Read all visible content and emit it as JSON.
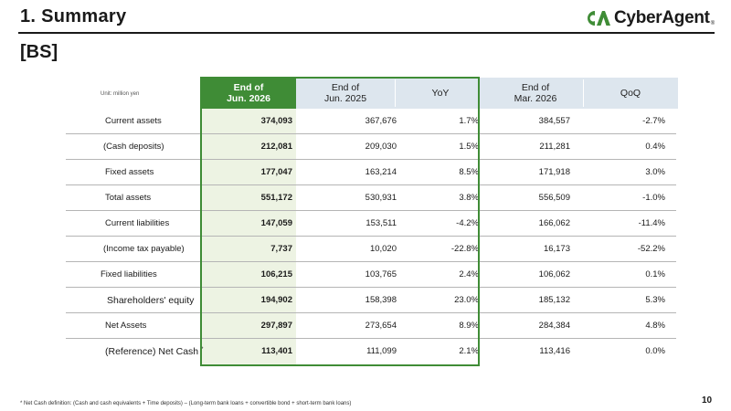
{
  "header": {
    "title": "1.  Summary",
    "section": "[BS]",
    "logo_text": "CyberAgent",
    "logo_reg": "®"
  },
  "table": {
    "unit": "Unit: million yen",
    "columns": [
      {
        "line1": "End of",
        "line2": "Jun. 2026"
      },
      {
        "line1": "End of",
        "line2": "Jun. 2025"
      },
      {
        "line1": "YoY",
        "line2": ""
      },
      {
        "line1": "End of",
        "line2": "Mar. 2026"
      },
      {
        "line1": "QoQ",
        "line2": ""
      }
    ],
    "rows": [
      {
        "label": "Current assets",
        "values": [
          "374,093",
          "367,676",
          "1.7%",
          "384,557",
          "-2.7%"
        ]
      },
      {
        "label": "(Cash deposits)",
        "values": [
          "212,081",
          "209,030",
          "1.5%",
          "211,281",
          "0.4%"
        ]
      },
      {
        "label": "Fixed assets",
        "values": [
          "177,047",
          "163,214",
          "8.5%",
          "171,918",
          "3.0%"
        ]
      },
      {
        "label": "Total assets",
        "values": [
          "551,172",
          "530,931",
          "3.8%",
          "556,509",
          "-1.0%"
        ]
      },
      {
        "label": "Current liabilities",
        "values": [
          "147,059",
          "153,511",
          "-4.2%",
          "166,062",
          "-11.4%"
        ]
      },
      {
        "label": "(Income tax payable)",
        "values": [
          "7,737",
          "10,020",
          "-22.8%",
          "16,173",
          "-52.2%"
        ]
      },
      {
        "label": "Fixed liabilities",
        "values": [
          "106,215",
          "103,765",
          "2.4%",
          "106,062",
          "0.1%"
        ]
      },
      {
        "label": "Shareholders' equity",
        "values": [
          "194,902",
          "158,398",
          "23.0%",
          "185,132",
          "5.3%"
        ]
      },
      {
        "label": "Net Assets",
        "values": [
          "297,897",
          "273,654",
          "8.9%",
          "284,384",
          "4.8%"
        ]
      },
      {
        "label": "(Reference) Net Cash",
        "label_mark": "*",
        "values": [
          "113,401",
          "111,099",
          "2.1%",
          "113,416",
          "0.0%"
        ]
      }
    ]
  },
  "footnote": "*  Net Cash definition: (Cash and cash equivalents + Time deposits) – (Long-term bank loans + convertible bond + short-term bank loans)",
  "page_number": "10",
  "colors": {
    "accent_green": "#3f8c36",
    "header_blue": "#dde6ee",
    "column_tint": "#edf3e3"
  }
}
